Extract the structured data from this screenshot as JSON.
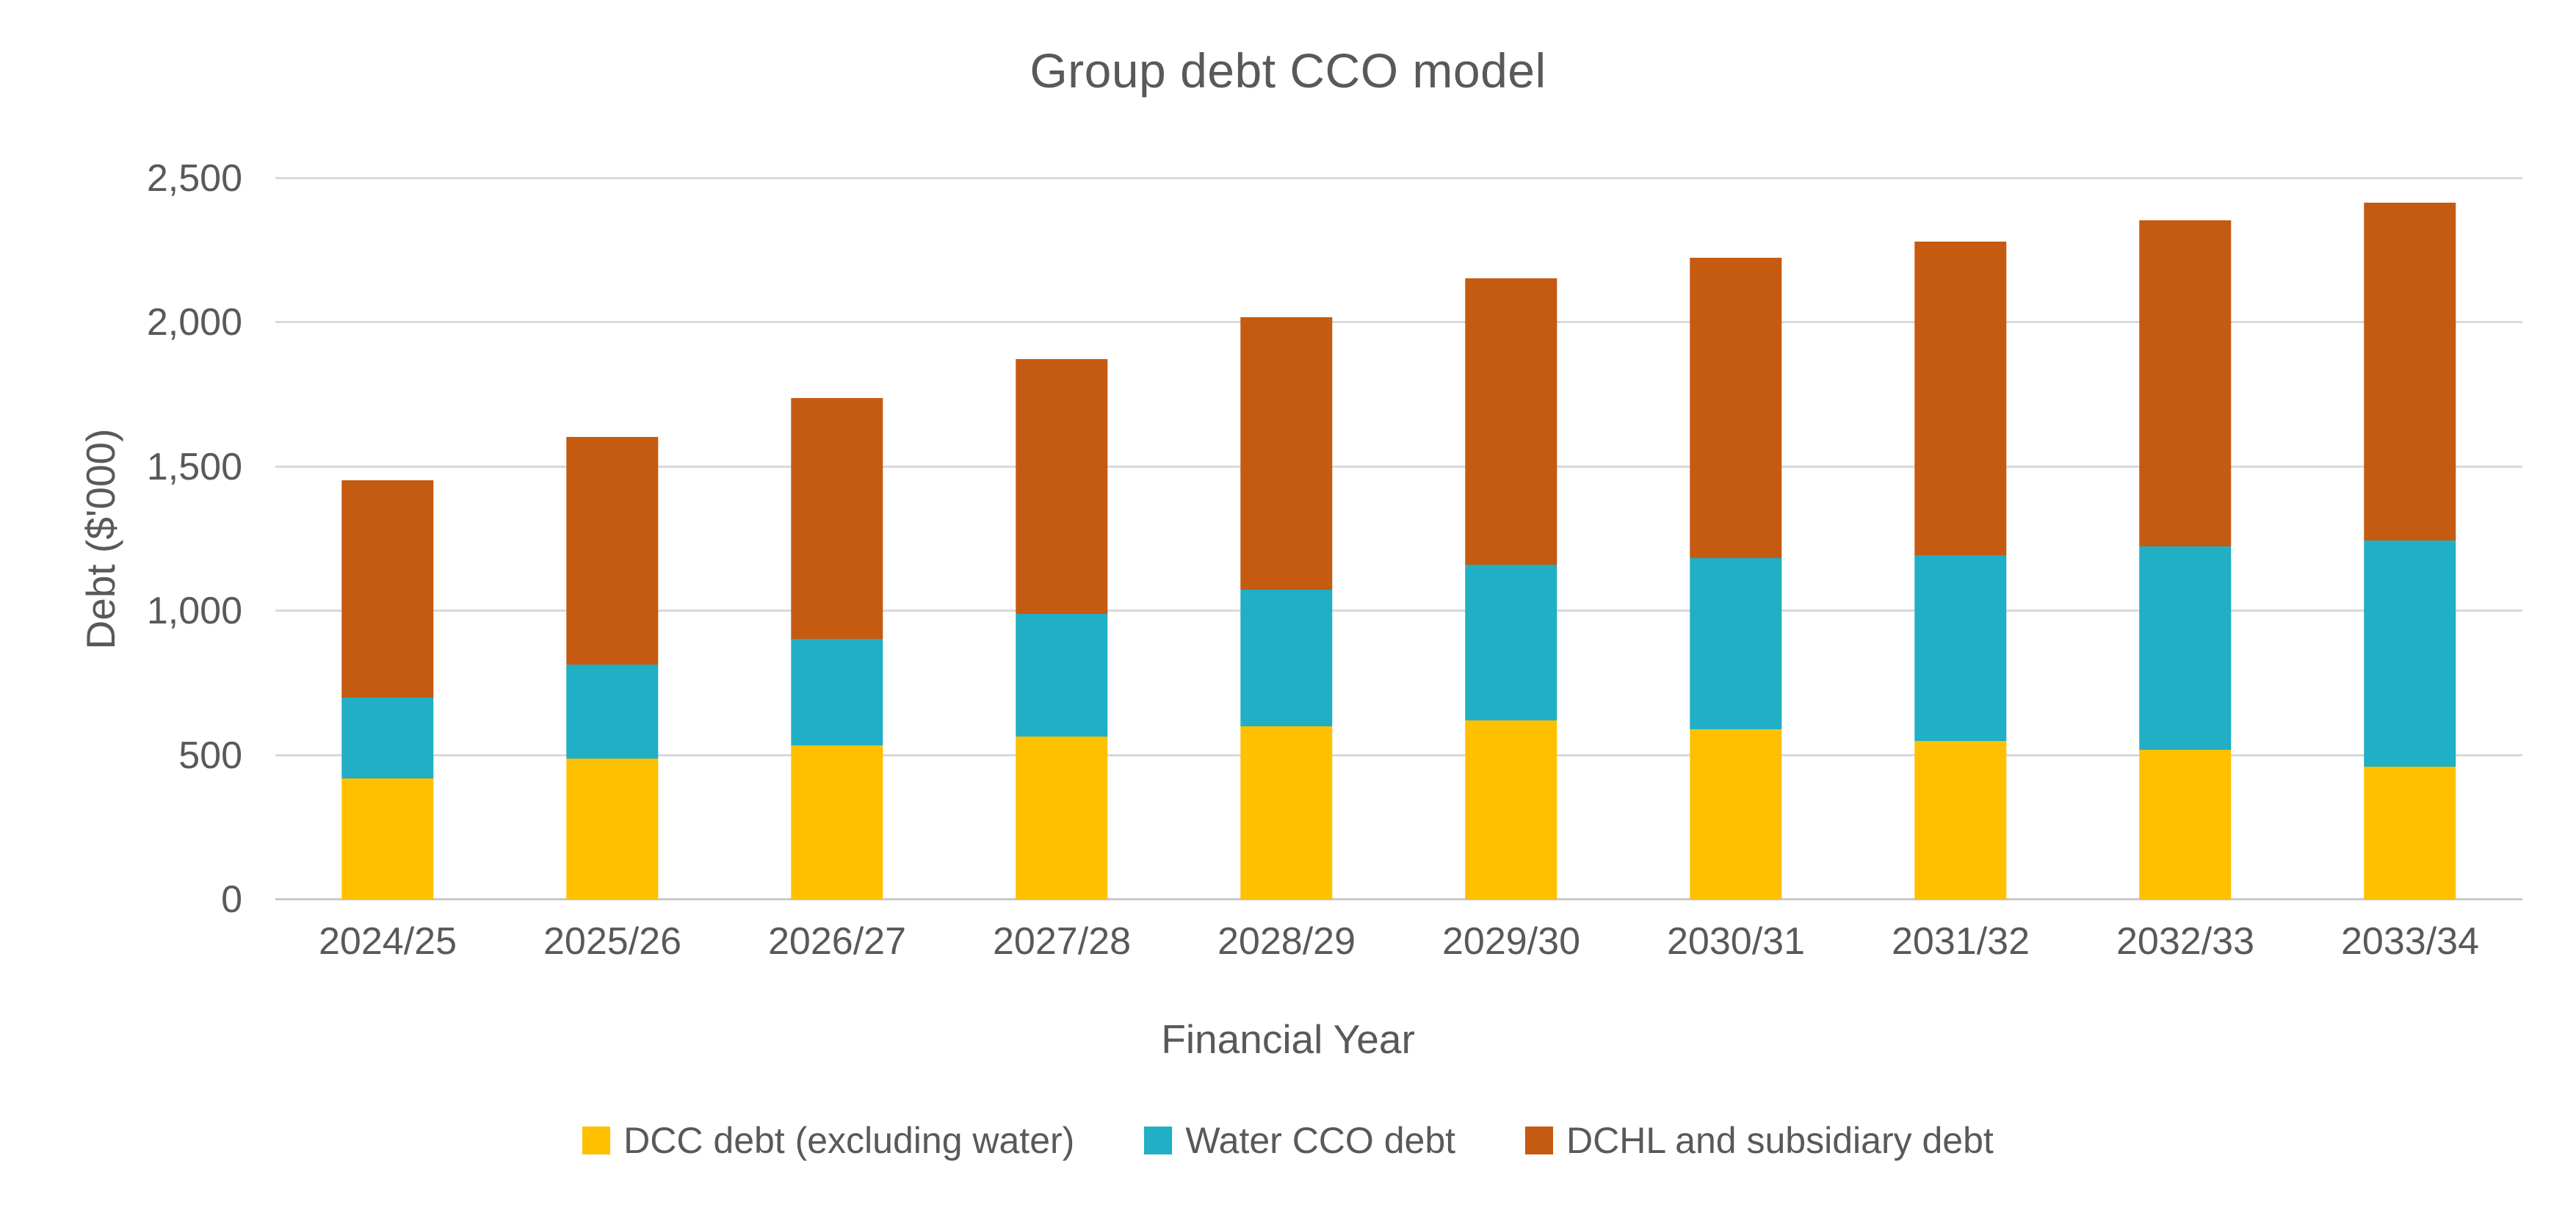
{
  "chart": {
    "title": "Group debt CCO model",
    "y_axis": {
      "title": "Debt ($'000)",
      "tick_labels": [
        "0",
        "500",
        "1,000",
        "1,500",
        "2,000",
        "2,500"
      ],
      "min": 0,
      "max": 2500
    },
    "x_axis": {
      "title": "Financial Year"
    },
    "colors": {
      "background": "#FFFFFF",
      "gridline": "#D9D9D9",
      "text": "#595959"
    }
  },
  "chart_data": {
    "type": "bar",
    "stacked": true,
    "title": "Group debt CCO model",
    "xlabel": "Financial Year",
    "ylabel": "Debt ($'000)",
    "ylim": [
      0,
      2500
    ],
    "grid": true,
    "legend_position": "bottom",
    "categories": [
      "2024/25",
      "2025/26",
      "2026/27",
      "2027/28",
      "2028/29",
      "2029/30",
      "2030/31",
      "2031/32",
      "2032/33",
      "2033/34"
    ],
    "series": [
      {
        "name": "DCC debt (excluding water)",
        "color": "#FFC000",
        "values": [
          420,
          490,
          535,
          565,
          600,
          620,
          590,
          550,
          520,
          460
        ]
      },
      {
        "name": "Water CCO debt",
        "color": "#20AFC5",
        "values": [
          280,
          325,
          370,
          425,
          475,
          540,
          595,
          645,
          705,
          785
        ]
      },
      {
        "name": "DCHL and subsidiary debt",
        "color": "#C55A11",
        "values": [
          755,
          790,
          835,
          885,
          945,
          995,
          1040,
          1085,
          1130,
          1170
        ]
      }
    ],
    "totals": [
      1455,
      1605,
      1740,
      1875,
      2020,
      2155,
      2225,
      2280,
      2355,
      2415
    ]
  }
}
